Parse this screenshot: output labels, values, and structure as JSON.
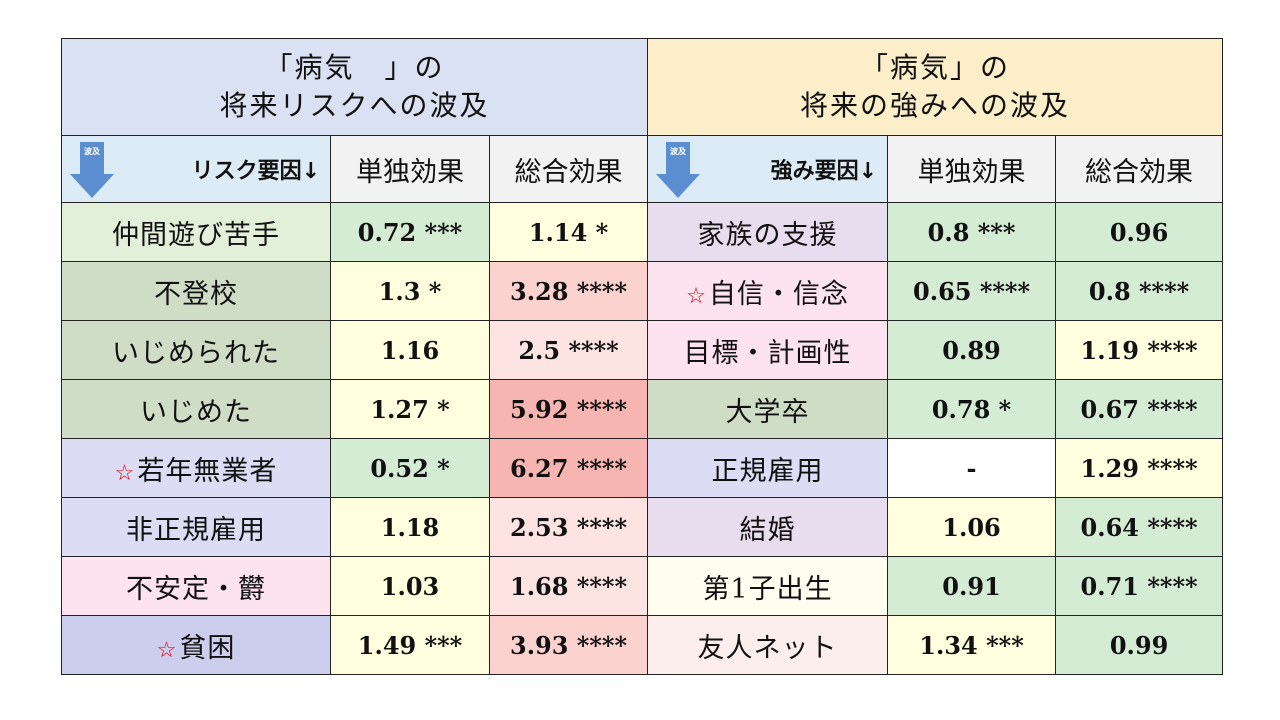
{
  "header": {
    "left_line1": "「病気　」の",
    "left_line2": "将来リスクへの波及",
    "right_line1": "「病気」の",
    "right_line2": "将来の強みへの波及"
  },
  "subheader": {
    "arrow_text": "波及",
    "left_label": "リスク要因↓",
    "right_label": "強み要因↓",
    "col_single": "単独効果",
    "col_total": "総合効果"
  },
  "colors": {
    "green": "#d5ecd4",
    "yellow": "#ffffdf",
    "pink1": "#fde4e3",
    "pink2": "#fcd2cf",
    "pink3": "#fac2bf",
    "red": "#f6b5b0",
    "white": "#ffffff",
    "arrow": "#5b8ed1"
  },
  "rows": [
    {
      "left": {
        "name": "仲間遊び苦手",
        "star": false,
        "name_bg": "#e2f0da",
        "single": "0.72 ***",
        "single_bg": "#d5ecd4",
        "total": "1.14 *",
        "total_bg": "#ffffdf"
      },
      "right": {
        "name": "家族の支援",
        "star": false,
        "name_bg": "#e8ddef",
        "single": "0.8 ***",
        "single_bg": "#d5ecd4",
        "total": "0.96",
        "total_bg": "#d5ecd4"
      }
    },
    {
      "left": {
        "name": "不登校",
        "star": false,
        "name_bg": "#cfdcc6",
        "single": "1.3 *",
        "single_bg": "#ffffdf",
        "total": "3.28 ****",
        "total_bg": "#fcd2cf"
      },
      "right": {
        "name": "自信・信念",
        "star": true,
        "name_bg": "#fde2ef",
        "single": "0.65 ****",
        "single_bg": "#d5ecd4",
        "total": "0.8 ****",
        "total_bg": "#d5ecd4"
      }
    },
    {
      "left": {
        "name": "いじめられた",
        "star": false,
        "name_bg": "#cfdcc6",
        "single": "1.16",
        "single_bg": "#ffffdf",
        "total": "2.5 ****",
        "total_bg": "#fde4e3"
      },
      "right": {
        "name": "目標・計画性",
        "star": false,
        "name_bg": "#fde2ef",
        "single": "0.89",
        "single_bg": "#d5ecd4",
        "total": "1.19 ****",
        "total_bg": "#ffffdf"
      }
    },
    {
      "left": {
        "name": "いじめた",
        "star": false,
        "name_bg": "#cfdcc6",
        "single": "1.27 *",
        "single_bg": "#ffffdf",
        "total": "5.92 ****",
        "total_bg": "#f6b5b0"
      },
      "right": {
        "name": "大学卒",
        "star": false,
        "name_bg": "#cfdcc6",
        "single": "0.78 *",
        "single_bg": "#d5ecd4",
        "total": "0.67 ****",
        "total_bg": "#d5ecd4"
      }
    },
    {
      "left": {
        "name": "若年無業者",
        "star": true,
        "name_bg": "#dcdcf5",
        "single": "0.52 *",
        "single_bg": "#d5ecd4",
        "total": "6.27 ****",
        "total_bg": "#f6b5b0"
      },
      "right": {
        "name": "正規雇用",
        "star": false,
        "name_bg": "#dcdcf5",
        "single": "-",
        "single_bg": "#ffffff",
        "total": "1.29 ****",
        "total_bg": "#ffffdf"
      }
    },
    {
      "left": {
        "name": "非正規雇用",
        "star": false,
        "name_bg": "#dcdcf5",
        "single": "1.18",
        "single_bg": "#ffffdf",
        "total": "2.53 ****",
        "total_bg": "#fde4e3"
      },
      "right": {
        "name": "結婚",
        "star": false,
        "name_bg": "#e8ddef",
        "single": "1.06",
        "single_bg": "#ffffdf",
        "total": "0.64 ****",
        "total_bg": "#d5ecd4"
      }
    },
    {
      "left": {
        "name": "不安定・欝",
        "star": false,
        "name_bg": "#fde2ef",
        "single": "1.03",
        "single_bg": "#ffffdf",
        "total": "1.68 ****",
        "total_bg": "#fde4e3"
      },
      "right": {
        "name": "第1子出生",
        "star": false,
        "name_bg": "#fffdf0",
        "single": "0.91",
        "single_bg": "#d5ecd4",
        "total": "0.71 ****",
        "total_bg": "#d5ecd4"
      }
    },
    {
      "left": {
        "name": "貧困",
        "star": true,
        "name_bg": "#cdcdee",
        "single": "1.49 ***",
        "single_bg": "#ffffdf",
        "total": "3.93 ****",
        "total_bg": "#fcd2cf"
      },
      "right": {
        "name": "友人ネット",
        "star": false,
        "name_bg": "#fdeeee",
        "single": "1.34 ***",
        "single_bg": "#ffffdf",
        "total": "0.99",
        "total_bg": "#d5ecd4"
      }
    }
  ]
}
